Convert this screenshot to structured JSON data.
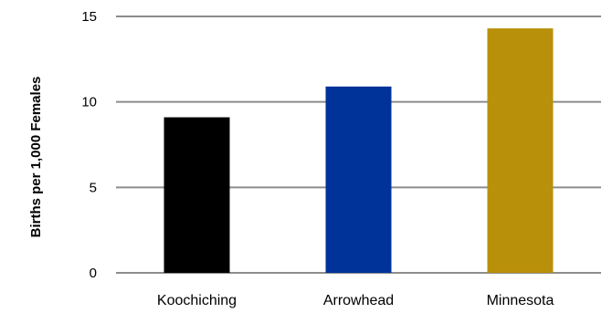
{
  "chart_data": {
    "type": "bar",
    "title": "",
    "xlabel": "",
    "ylabel": "Births per 1,000 Females",
    "categories": [
      "Koochiching",
      "Arrowhead",
      "Minnesota"
    ],
    "values": [
      9.1,
      10.9,
      14.3
    ],
    "bar_colors": [
      "#000000",
      "#003399",
      "#b8900a"
    ],
    "ylim": [
      0,
      15
    ],
    "yticks": [
      "0",
      "5",
      "10",
      "15"
    ],
    "ytick_values": [
      0,
      5,
      10,
      15
    ],
    "grid": true,
    "legend": "none"
  }
}
